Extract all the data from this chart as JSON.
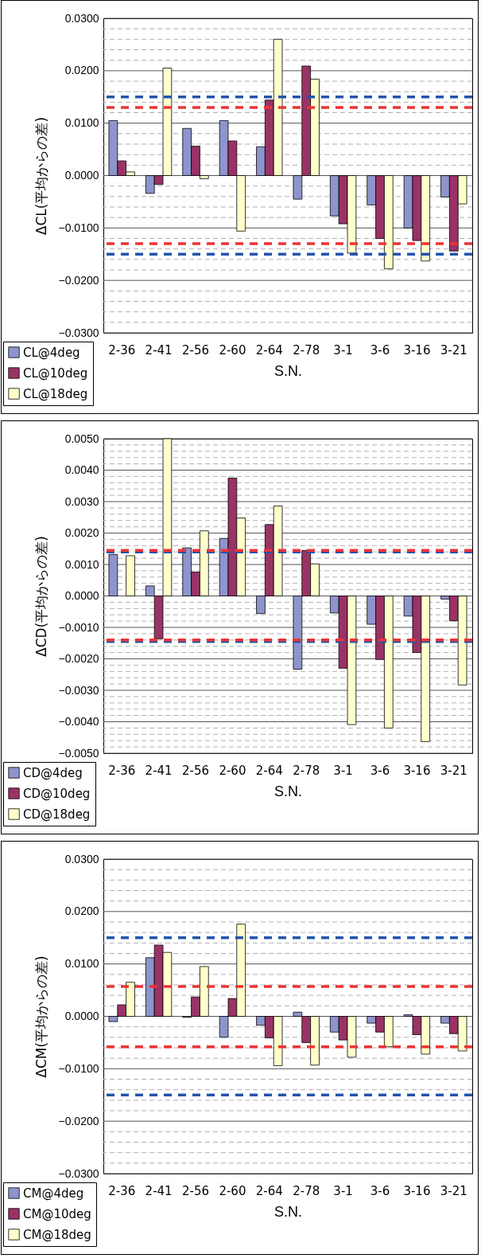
{
  "chart_data": [
    {
      "type": "bar",
      "ylabel": "ΔCL(平均からの差)",
      "xlabel": "S.N.",
      "categories": [
        "2-36",
        "2-41",
        "2-56",
        "2-60",
        "2-64",
        "2-78",
        "3-1",
        "3-6",
        "3-16",
        "3-21"
      ],
      "series": [
        {
          "name": "CL@4deg",
          "color": "#8e94cc",
          "values": [
            0.0105,
            -0.0034,
            0.009,
            0.0105,
            0.0055,
            -0.0045,
            -0.0077,
            -0.0056,
            -0.01,
            -0.0041
          ]
        },
        {
          "name": "CL@10deg",
          "color": "#993366",
          "values": [
            0.0028,
            -0.0017,
            0.0056,
            0.0066,
            0.0144,
            0.0209,
            -0.0092,
            -0.012,
            -0.0124,
            -0.0144
          ]
        },
        {
          "name": "CL@18deg",
          "color": "#ffffcc",
          "values": [
            0.0007,
            0.0205,
            -0.0006,
            -0.0106,
            0.026,
            0.0184,
            -0.0148,
            -0.0178,
            -0.0163,
            -0.0054
          ]
        }
      ],
      "ylim": [
        -0.03,
        0.03
      ],
      "yticks": [
        {
          "value": -0.03,
          "label": "−0.0300"
        },
        {
          "value": -0.028,
          "label": null
        },
        {
          "value": -0.026,
          "label": null
        },
        {
          "value": -0.024,
          "label": null
        },
        {
          "value": -0.022,
          "label": null
        },
        {
          "value": -0.02,
          "label": "−0.0200"
        },
        {
          "value": -0.018,
          "label": null
        },
        {
          "value": -0.016,
          "label": null
        },
        {
          "value": -0.014,
          "label": null
        },
        {
          "value": -0.012,
          "label": null
        },
        {
          "value": -0.01,
          "label": "−0.0100"
        },
        {
          "value": -0.008,
          "label": null
        },
        {
          "value": -0.006,
          "label": null
        },
        {
          "value": -0.004,
          "label": null
        },
        {
          "value": -0.002,
          "label": null
        },
        {
          "value": 0,
          "label": "0.0000"
        },
        {
          "value": 0.002,
          "label": null
        },
        {
          "value": 0.004,
          "label": null
        },
        {
          "value": 0.006,
          "label": null
        },
        {
          "value": 0.008,
          "label": null
        },
        {
          "value": 0.01,
          "label": "0.0100"
        },
        {
          "value": 0.012,
          "label": null
        },
        {
          "value": 0.014,
          "label": null
        },
        {
          "value": 0.016,
          "label": null
        },
        {
          "value": 0.018,
          "label": null
        },
        {
          "value": 0.02,
          "label": "0.0200"
        },
        {
          "value": 0.022,
          "label": null
        },
        {
          "value": 0.024,
          "label": null
        },
        {
          "value": 0.026,
          "label": null
        },
        {
          "value": 0.028,
          "label": null
        },
        {
          "value": 0.03,
          "label": "0.0300"
        }
      ],
      "grid": true,
      "legend": "bottom left",
      "ref_lines": [
        {
          "axis": "y",
          "value": 0.015,
          "color": "#2255aa",
          "line_style": "dashed"
        },
        {
          "axis": "y",
          "value": 0.013,
          "color": "#ee3333",
          "line_style": "dashed"
        },
        {
          "axis": "y",
          "value": -0.013,
          "color": "#ee3333",
          "line_style": "dashed"
        },
        {
          "axis": "y",
          "value": -0.015,
          "color": "#2255aa",
          "line_style": "dashed"
        }
      ]
    },
    {
      "type": "bar",
      "ylabel": "ΔCD(平均からの差)",
      "xlabel": "S.N.",
      "categories": [
        "2-36",
        "2-41",
        "2-56",
        "2-60",
        "2-64",
        "2-78",
        "3-1",
        "3-6",
        "3-16",
        "3-21"
      ],
      "series": [
        {
          "name": "CD@4deg",
          "color": "#8e94cc",
          "values": [
            0.00132,
            0.00032,
            0.00153,
            0.00183,
            -0.00056,
            -0.00233,
            -0.00054,
            -0.0009,
            -0.00064,
            -0.0001
          ]
        },
        {
          "name": "CD@10deg",
          "color": "#993366",
          "values": [
            null,
            -0.00136,
            0.00076,
            0.00375,
            0.00227,
            0.00145,
            -0.0023,
            -0.00202,
            -0.0018,
            -0.00079
          ]
        },
        {
          "name": "CD@18deg",
          "color": "#ffffcc",
          "values": [
            0.00128,
            0.005,
            0.00207,
            0.00248,
            0.00286,
            0.00102,
            -0.00409,
            -0.0042,
            -0.00463,
            -0.00283
          ]
        }
      ],
      "ylim": [
        -0.005,
        0.005
      ],
      "yticks": [
        {
          "value": -0.005,
          "label": "−0.0050"
        },
        {
          "value": -0.0048,
          "label": null
        },
        {
          "value": -0.0046,
          "label": null
        },
        {
          "value": -0.0044,
          "label": null
        },
        {
          "value": -0.0042,
          "label": null
        },
        {
          "value": -0.004,
          "label": "−0.0040"
        },
        {
          "value": -0.0038,
          "label": null
        },
        {
          "value": -0.0036,
          "label": null
        },
        {
          "value": -0.0034,
          "label": null
        },
        {
          "value": -0.0032,
          "label": null
        },
        {
          "value": -0.003,
          "label": "−0.0030"
        },
        {
          "value": -0.0028,
          "label": null
        },
        {
          "value": -0.0026,
          "label": null
        },
        {
          "value": -0.0024,
          "label": null
        },
        {
          "value": -0.0022,
          "label": null
        },
        {
          "value": -0.002,
          "label": "−0.0020"
        },
        {
          "value": -0.0018,
          "label": null
        },
        {
          "value": -0.0016,
          "label": null
        },
        {
          "value": -0.0014,
          "label": null
        },
        {
          "value": -0.0012,
          "label": null
        },
        {
          "value": -0.001,
          "label": "−0.0010"
        },
        {
          "value": -0.0008,
          "label": null
        },
        {
          "value": -0.0006,
          "label": null
        },
        {
          "value": -0.0004,
          "label": null
        },
        {
          "value": -0.0002,
          "label": null
        },
        {
          "value": 0,
          "label": "0.0000"
        },
        {
          "value": 0.0002,
          "label": null
        },
        {
          "value": 0.0004,
          "label": null
        },
        {
          "value": 0.0006,
          "label": null
        },
        {
          "value": 0.0008,
          "label": null
        },
        {
          "value": 0.001,
          "label": "0.0010"
        },
        {
          "value": 0.0012,
          "label": null
        },
        {
          "value": 0.0014,
          "label": null
        },
        {
          "value": 0.0016,
          "label": null
        },
        {
          "value": 0.0018,
          "label": null
        },
        {
          "value": 0.002,
          "label": "0.0020"
        },
        {
          "value": 0.0022,
          "label": null
        },
        {
          "value": 0.0024,
          "label": null
        },
        {
          "value": 0.0026,
          "label": null
        },
        {
          "value": 0.0028,
          "label": null
        },
        {
          "value": 0.003,
          "label": "0.0030"
        },
        {
          "value": 0.0032,
          "label": null
        },
        {
          "value": 0.0034,
          "label": null
        },
        {
          "value": 0.0036,
          "label": null
        },
        {
          "value": 0.0038,
          "label": null
        },
        {
          "value": 0.004,
          "label": "0.0040"
        },
        {
          "value": 0.0042,
          "label": null
        },
        {
          "value": 0.0044,
          "label": null
        },
        {
          "value": 0.0046,
          "label": null
        },
        {
          "value": 0.0048,
          "label": null
        },
        {
          "value": 0.005,
          "label": "0.0050"
        }
      ],
      "grid": true,
      "legend": "bottom left",
      "ref_lines": [
        {
          "axis": "y",
          "value": 0.0014,
          "color": "#2255aa",
          "line_style": "dashed"
        },
        {
          "axis": "y",
          "value": 0.00145,
          "color": "#ee3333",
          "line_style": "dashed"
        },
        {
          "axis": "y",
          "value": -0.00145,
          "color": "#2255aa",
          "line_style": "dashed"
        },
        {
          "axis": "y",
          "value": -0.0014,
          "color": "#ee3333",
          "line_style": "dashed"
        }
      ]
    },
    {
      "type": "bar",
      "ylabel": "ΔCM(平均からの差)",
      "xlabel": "S.N.",
      "categories": [
        "2-36",
        "2-41",
        "2-56",
        "2-60",
        "2-64",
        "2-78",
        "3-1",
        "3-6",
        "3-16",
        "3-21"
      ],
      "series": [
        {
          "name": "CM@4deg",
          "color": "#8e94cc",
          "values": [
            -0.001,
            0.0112,
            -0.0002,
            -0.004,
            -0.0017,
            0.0008,
            -0.003,
            -0.0013,
            0.0003,
            -0.0013
          ]
        },
        {
          "name": "CM@10deg",
          "color": "#993366",
          "values": [
            0.0022,
            0.0136,
            0.0037,
            0.0034,
            -0.0041,
            -0.005,
            -0.0045,
            -0.003,
            -0.0035,
            -0.0033
          ]
        },
        {
          "name": "CM@18deg",
          "color": "#ffffcc",
          "values": [
            0.0065,
            0.0122,
            0.0095,
            0.0176,
            -0.0094,
            -0.0093,
            -0.0078,
            -0.0058,
            -0.0072,
            -0.0066
          ]
        }
      ],
      "ylim": [
        -0.03,
        0.03
      ],
      "yticks": [
        {
          "value": -0.03,
          "label": "−0.0300"
        },
        {
          "value": -0.028,
          "label": null
        },
        {
          "value": -0.026,
          "label": null
        },
        {
          "value": -0.024,
          "label": null
        },
        {
          "value": -0.022,
          "label": null
        },
        {
          "value": -0.02,
          "label": "−0.0200"
        },
        {
          "value": -0.018,
          "label": null
        },
        {
          "value": -0.016,
          "label": null
        },
        {
          "value": -0.014,
          "label": null
        },
        {
          "value": -0.012,
          "label": null
        },
        {
          "value": -0.01,
          "label": "−0.0100"
        },
        {
          "value": -0.008,
          "label": null
        },
        {
          "value": -0.006,
          "label": null
        },
        {
          "value": -0.004,
          "label": null
        },
        {
          "value": -0.002,
          "label": null
        },
        {
          "value": 0,
          "label": "0.0000"
        },
        {
          "value": 0.002,
          "label": null
        },
        {
          "value": 0.004,
          "label": null
        },
        {
          "value": 0.006,
          "label": null
        },
        {
          "value": 0.008,
          "label": null
        },
        {
          "value": 0.01,
          "label": "0.0100"
        },
        {
          "value": 0.012,
          "label": null
        },
        {
          "value": 0.014,
          "label": null
        },
        {
          "value": 0.016,
          "label": null
        },
        {
          "value": 0.018,
          "label": null
        },
        {
          "value": 0.02,
          "label": "0.0200"
        },
        {
          "value": 0.022,
          "label": null
        },
        {
          "value": 0.024,
          "label": null
        },
        {
          "value": 0.026,
          "label": null
        },
        {
          "value": 0.028,
          "label": null
        },
        {
          "value": 0.03,
          "label": "0.0300"
        }
      ],
      "grid": true,
      "legend": "bottom left",
      "ref_lines": [
        {
          "axis": "y",
          "value": 0.015,
          "color": "#2255aa",
          "line_style": "dashed"
        },
        {
          "axis": "y",
          "value": 0.0057,
          "color": "#ee3333",
          "line_style": "dashed"
        },
        {
          "axis": "y",
          "value": -0.0058,
          "color": "#ee3333",
          "line_style": "dashed"
        },
        {
          "axis": "y",
          "value": -0.015,
          "color": "#2255aa",
          "line_style": "dashed"
        }
      ]
    }
  ]
}
